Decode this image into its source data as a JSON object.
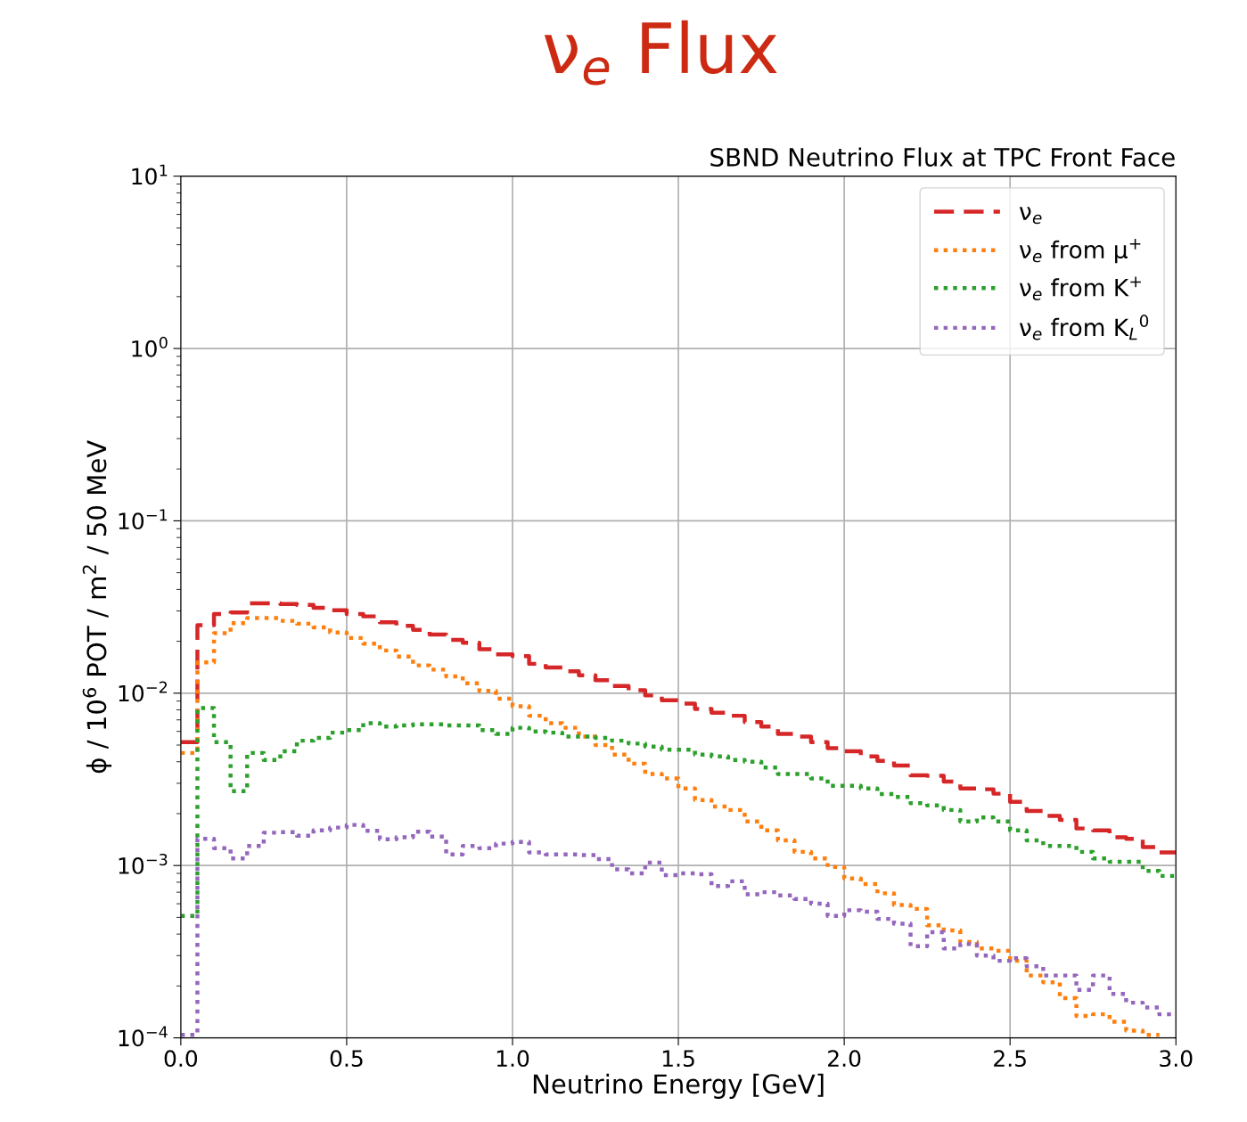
{
  "chart_data": {
    "type": "histogram",
    "title": "ν$_{e}$ Flux",
    "subtitle": "SBND Neutrino Flux at TPC Front Face",
    "xlabel": "Neutrino Energy [GeV]",
    "ylabel": "ϕ / 10$^{6}$ POT / m$^{2}$ / 50 MeV",
    "bins": [
      0,
      0.05,
      0.1,
      0.15,
      0.2,
      0.25,
      0.3,
      0.35,
      0.4,
      0.45,
      0.5,
      0.55,
      0.6,
      0.65,
      0.7,
      0.75,
      0.8,
      0.85,
      0.9,
      0.95,
      1.0,
      1.05,
      1.1,
      1.15,
      1.2,
      1.25,
      1.3,
      1.35,
      1.4,
      1.45,
      1.5,
      1.55,
      1.6,
      1.65,
      1.7,
      1.75,
      1.8,
      1.85,
      1.9,
      1.95,
      2.0,
      2.05,
      2.1,
      2.15,
      2.2,
      2.25,
      2.3,
      2.35,
      2.4,
      2.45,
      2.5,
      2.55,
      2.6,
      2.65,
      2.7,
      2.75,
      2.8,
      2.85,
      2.9,
      2.95,
      3.0
    ],
    "series": [
      {
        "name": "ν$_{e}$",
        "color": "#d62728",
        "line_style": "dashed",
        "values": [
          0.0052,
          0.0248,
          0.0288,
          0.0294,
          0.0332,
          0.0332,
          0.0329,
          0.0325,
          0.0313,
          0.0303,
          0.0288,
          0.0279,
          0.0258,
          0.0246,
          0.0233,
          0.0219,
          0.0204,
          0.0196,
          0.018,
          0.0168,
          0.0164,
          0.0148,
          0.0141,
          0.0134,
          0.0127,
          0.0119,
          0.011,
          0.0104,
          0.0097,
          0.0091,
          0.0087,
          0.0081,
          0.0077,
          0.0074,
          0.0068,
          0.0064,
          0.0058,
          0.0056,
          0.0052,
          0.0048,
          0.0046,
          0.0043,
          0.00405,
          0.0038,
          0.00334,
          0.00332,
          0.00307,
          0.0028,
          0.00277,
          0.00261,
          0.00234,
          0.00207,
          0.00194,
          0.00184,
          0.00164,
          0.0016,
          0.00146,
          0.00143,
          0.00128,
          0.00119
        ]
      },
      {
        "name": "ν$_{e}$ from μ$^{+}$",
        "color": "#ff7f0e",
        "line_style": "dotted",
        "bins": [
          0,
          0.05,
          0.1,
          0.15,
          0.2,
          0.25,
          0.3,
          0.35,
          0.4,
          0.45,
          0.5,
          0.55,
          0.6,
          0.65,
          0.7,
          0.75,
          0.8,
          0.85,
          0.9,
          0.95,
          1.0,
          1.05,
          1.1,
          1.15,
          1.2,
          1.25,
          1.3,
          1.35,
          1.4,
          1.45,
          1.5,
          1.55,
          1.6,
          1.65,
          1.7,
          1.75,
          1.8,
          1.85,
          1.9,
          1.95,
          2.0,
          2.05,
          2.1,
          2.15,
          2.2,
          2.25,
          2.3,
          2.35,
          2.4,
          2.45,
          2.5,
          2.55,
          2.6,
          2.65,
          2.7,
          2.75,
          2.8,
          2.85,
          2.9,
          2.95
        ],
        "values": [
          0.0045,
          0.0151,
          0.0223,
          0.0255,
          0.0273,
          0.0273,
          0.0263,
          0.0253,
          0.0241,
          0.0225,
          0.0209,
          0.0194,
          0.0177,
          0.0163,
          0.0145,
          0.0137,
          0.0125,
          0.0114,
          0.0103,
          0.0093,
          0.0084,
          0.0074,
          0.0067,
          0.0063,
          0.0056,
          0.005,
          0.0044,
          0.0039,
          0.0034,
          0.0032,
          0.0028,
          0.0024,
          0.0022,
          0.0021,
          0.0018,
          0.0016,
          0.0014,
          0.0012,
          0.0011,
          0.00098,
          0.00084,
          0.00078,
          0.00069,
          0.00059,
          0.00056,
          0.00045,
          0.00042,
          0.00036,
          0.00033,
          0.00032,
          0.00028,
          0.00023,
          0.00021,
          0.00017,
          0.000134,
          0.000137,
          0.000124,
          0.00011,
          0.000104
        ]
      },
      {
        "name": "ν$_{e}$ from K$^{+}$",
        "color": "#2ca02c",
        "line_style": "dotted",
        "values": [
          0.00051,
          0.0082,
          0.0052,
          0.0027,
          0.0045,
          0.0041,
          0.0046,
          0.0053,
          0.0055,
          0.0059,
          0.0061,
          0.0067,
          0.0064,
          0.0065,
          0.0066,
          0.0066,
          0.0065,
          0.0065,
          0.0061,
          0.0058,
          0.0063,
          0.006,
          0.0059,
          0.0056,
          0.0056,
          0.0055,
          0.0053,
          0.0051,
          0.0049,
          0.0047,
          0.0047,
          0.0044,
          0.0043,
          0.0041,
          0.004,
          0.0037,
          0.0034,
          0.0034,
          0.0032,
          0.0029,
          0.0029,
          0.0028,
          0.0026,
          0.0025,
          0.0023,
          0.00223,
          0.0021,
          0.0018,
          0.0019,
          0.0018,
          0.0016,
          0.0014,
          0.0013,
          0.0013,
          0.0012,
          0.0011,
          0.00105,
          0.00105,
          0.00093,
          0.00087
        ]
      },
      {
        "name": "ν$_{e}$ from K$_{L}$$^{0}$",
        "color": "#9467bd",
        "line_style": "dotted",
        "values": [
          0.000104,
          0.00143,
          0.00126,
          0.0011,
          0.0013,
          0.00155,
          0.00156,
          0.00149,
          0.0016,
          0.00166,
          0.00172,
          0.00159,
          0.00142,
          0.00146,
          0.00157,
          0.00147,
          0.00116,
          0.0013,
          0.00126,
          0.00134,
          0.00137,
          0.00119,
          0.00116,
          0.00116,
          0.00115,
          0.00109,
          0.00095,
          0.0009,
          0.00104,
          0.00088,
          0.0009,
          0.00089,
          0.00076,
          0.00081,
          0.00068,
          0.0007,
          0.00067,
          0.00064,
          0.0006,
          0.00051,
          0.00055,
          0.00054,
          0.00049,
          0.00046,
          0.00034,
          0.00041,
          0.00033,
          0.00035,
          0.0003,
          0.00028,
          0.00029,
          0.00026,
          0.00023,
          0.00023,
          0.00019,
          0.00023,
          0.00018,
          0.00016,
          0.00015,
          0.000137
        ]
      }
    ],
    "log": "y",
    "xlim": [
      0,
      3
    ],
    "ylim": [
      0.0001,
      10
    ],
    "xticks": [
      {
        "value": 0,
        "label": "0.0"
      },
      {
        "value": 0.5,
        "label": "0.5"
      },
      {
        "value": 1,
        "label": "1.0"
      },
      {
        "value": 1.5,
        "label": "1.5"
      },
      {
        "value": 2,
        "label": "2.0"
      },
      {
        "value": 2.5,
        "label": "2.5"
      },
      {
        "value": 3,
        "label": "3.0"
      }
    ],
    "yticks": [
      {
        "value": 0.0001,
        "label": "10$^{−4}$"
      },
      {
        "value": 0.001,
        "label": "10$^{−3}$"
      },
      {
        "value": 0.01,
        "label": "10$^{−2}$"
      },
      {
        "value": 0.1,
        "label": "10$^{−1}$"
      },
      {
        "value": 1,
        "label": "10$^{0}$"
      },
      {
        "value": 10,
        "label": "10$^{1}$"
      }
    ],
    "grid": true,
    "legend": "top right"
  }
}
